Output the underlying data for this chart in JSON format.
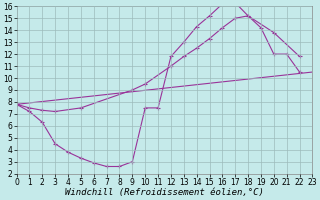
{
  "xlabel": "Windchill (Refroidissement éolien,°C)",
  "xlim": [
    0,
    23
  ],
  "ylim": [
    2,
    16
  ],
  "xticks": [
    0,
    1,
    2,
    3,
    4,
    5,
    6,
    7,
    8,
    9,
    10,
    11,
    12,
    13,
    14,
    15,
    16,
    17,
    18,
    19,
    20,
    21,
    22,
    23
  ],
  "yticks": [
    2,
    3,
    4,
    5,
    6,
    7,
    8,
    9,
    10,
    11,
    12,
    13,
    14,
    15,
    16
  ],
  "bg_color": "#c5eaea",
  "grid_color": "#9dbcbc",
  "line_color": "#993399",
  "curve1_x": [
    0,
    1,
    2,
    3,
    4,
    5,
    6,
    7,
    8,
    9,
    10,
    11,
    12,
    13,
    14,
    15,
    16,
    17,
    18,
    19,
    20,
    21,
    22
  ],
  "curve1_y": [
    7.8,
    7.2,
    6.3,
    4.5,
    3.8,
    3.3,
    2.9,
    2.6,
    2.6,
    3.0,
    7.5,
    7.5,
    11.8,
    13.0,
    14.3,
    15.2,
    16.2,
    16.3,
    15.2,
    14.2,
    12.0,
    12.0,
    10.5
  ],
  "curve2_x": [
    0,
    1,
    2,
    3,
    5,
    9,
    10,
    12,
    13,
    14,
    15,
    16,
    17,
    18,
    20,
    22
  ],
  "curve2_y": [
    7.8,
    7.5,
    7.3,
    7.2,
    7.5,
    9.0,
    9.5,
    11.0,
    11.8,
    12.5,
    13.3,
    14.2,
    15.0,
    15.2,
    13.8,
    11.8
  ],
  "line3_x": [
    0,
    23
  ],
  "line3_y": [
    7.8,
    10.5
  ],
  "tick_font_size": 5.5,
  "xlabel_font_size": 6.5,
  "lw": 0.8,
  "ms": 2.5
}
